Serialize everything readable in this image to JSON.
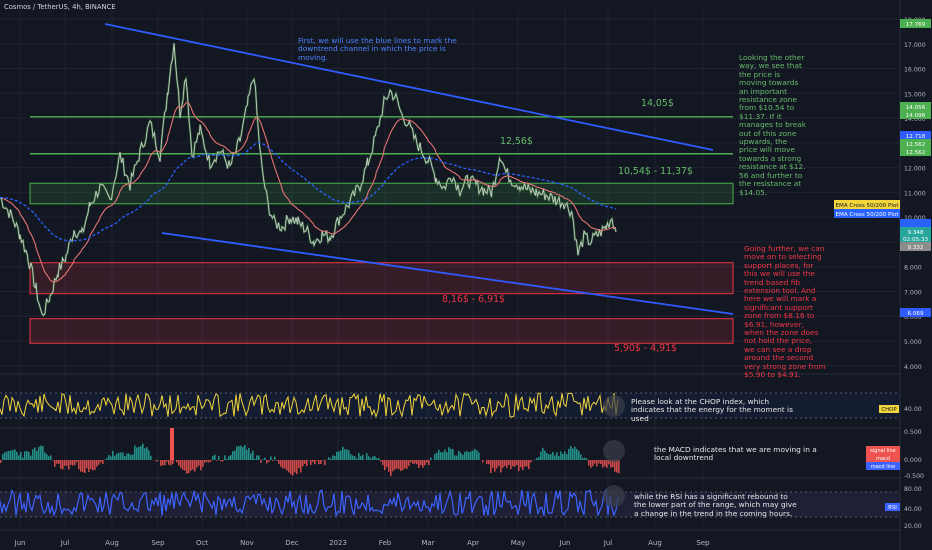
{
  "header": {
    "symbol": "Cosmos / TetherUS, 4h, BINANCE"
  },
  "colors": {
    "background": "#131722",
    "grid": "#1f2331",
    "channel": "#2f5bff",
    "resistance": "#4caf50",
    "support": "#f23645",
    "price": "#c9c9c9",
    "ema_fast": "#e57373",
    "ema_slow": "#2962ff",
    "chop": "#f2d63c",
    "rsi": "#3d63ff",
    "macd_up": "#26a69a",
    "macd_down": "#ef5350",
    "note_blue": "#4d86ff",
    "note_green": "#66bb6a",
    "note_red": "#f23645",
    "note_white": "#e8e8e8"
  },
  "notes": {
    "channel": "First, we will use the blue lines to mark the\ndowntrend channel in which the price is\nmoving.",
    "resistance": "Looking the other\nway, we see that\nthe price is\nmoving towards\nan important\nresistance zone\nfrom $10.54 to\n$11.37. If it\nmanages to break\nout of this zone\nupwards, the\nprice will move\ntowards a strong\nresistance at $12.\n56 and further to\nthe resistance at\n$14.05.",
    "support": "Going further, we can\nmove on to selecting\nsupport places, for\nthis we will use the\ntrend based fib\nextension tool. And\nhere we will mark a\nsignificant support\nzone from $8.16 to\n$6.91, however,\nwhen the zone does\nnot hold the price,\nwe can see a drop\naround the second\nvery strong zone from\n$5.90 to $4.91.",
    "chop": "Please look at the CHOP index, which\nindicates that the energy for the moment is\nused",
    "macd": "the MACD indicates that we are moving in a\nlocal downtrend",
    "rsi": "while the RSI has a significant rebound to\nthe lower part of the range, which may give\na change in the trend in the coming hours."
  },
  "chart_data": {
    "type": "line",
    "title": "Cosmos / TetherUS, 4h, BINANCE",
    "x": [
      "Jun",
      "Jul",
      "Aug",
      "Sep",
      "Oct",
      "Nov",
      "Dec",
      "2023",
      "Feb",
      "Mar",
      "Apr",
      "May",
      "Jun",
      "Jul",
      "Aug",
      "Sep"
    ],
    "price_axis": {
      "ticks": [
        "18.000",
        "17.000",
        "16.000",
        "15.000",
        "14.000",
        "13.000",
        "12.000",
        "11.000",
        "10.000",
        "9.000",
        "8.000",
        "7.000",
        "6.000",
        "5.000",
        "4.000"
      ],
      "badges": [
        {
          "text": "17.769",
          "color": "#4caf50"
        },
        {
          "text": "14.056",
          "color": "#4caf50"
        },
        {
          "text": "14.096",
          "color": "#4caf50"
        },
        {
          "text": "12.718",
          "color": "#2f5bff"
        },
        {
          "text": "12.562",
          "color": "#4caf50"
        },
        {
          "text": "12.562",
          "color": "#4caf50"
        },
        {
          "text": "EMA Cross 50/200 Plot",
          "color": "#f2d63c"
        },
        {
          "text": "EMA Cross 50/200 Plot",
          "color": "#2962ff"
        },
        {
          "text": "",
          "color": "#2962ff"
        },
        {
          "text": "9.348",
          "color": "#26a69a"
        },
        {
          "text": "02:05:33",
          "color": "#26a69a"
        },
        {
          "text": "9.332",
          "color": "#8c8c8c"
        },
        {
          "text": "6.069",
          "color": "#2f5bff"
        }
      ]
    },
    "indicator_axes": {
      "chop": {
        "ticks": [
          "40.00"
        ],
        "label": "CHOP"
      },
      "macd": {
        "ticks": [
          "0.500",
          "0.000",
          "-0.500"
        ],
        "labels": [
          "signal line",
          "macd",
          "macd line"
        ]
      },
      "rsi": {
        "ticks": [
          "80.00",
          "40.00",
          "20.00"
        ],
        "label": "RSI"
      }
    },
    "zones": [
      {
        "label": "14,05$",
        "kind": "line",
        "value": 14.05,
        "color": "#4caf50"
      },
      {
        "label": "12,56$",
        "kind": "line",
        "value": 12.56,
        "color": "#4caf50"
      },
      {
        "label": "10,54$ - 11,37$",
        "kind": "box",
        "low": 10.54,
        "high": 11.37,
        "color": "#4caf50"
      },
      {
        "label": "8,16$ - 6,91$",
        "kind": "box",
        "low": 6.91,
        "high": 8.16,
        "color": "#f23645"
      },
      {
        "label": "5,90$ - 4,91$",
        "kind": "box",
        "low": 4.91,
        "high": 5.9,
        "color": "#f23645"
      }
    ],
    "price_series": [
      [
        0,
        10.8
      ],
      [
        12,
        10.0
      ],
      [
        20,
        9.3
      ],
      [
        28,
        8.4
      ],
      [
        36,
        7.1
      ],
      [
        42,
        6.0
      ],
      [
        50,
        6.8
      ],
      [
        58,
        7.8
      ],
      [
        66,
        8.4
      ],
      [
        74,
        9.5
      ],
      [
        82,
        9.3
      ],
      [
        90,
        10.5
      ],
      [
        100,
        11.2
      ],
      [
        110,
        10.7
      ],
      [
        120,
        12.5
      ],
      [
        130,
        11.3
      ],
      [
        140,
        12.6
      ],
      [
        150,
        13.8
      ],
      [
        160,
        12.5
      ],
      [
        168,
        15.2
      ],
      [
        174,
        17.1
      ],
      [
        180,
        14.2
      ],
      [
        186,
        15.8
      ],
      [
        192,
        12.5
      ],
      [
        200,
        13.5
      ],
      [
        210,
        12.2
      ],
      [
        220,
        12.7
      ],
      [
        230,
        12.0
      ],
      [
        240,
        13.1
      ],
      [
        248,
        14.6
      ],
      [
        254,
        15.8
      ],
      [
        258,
        13.6
      ],
      [
        262,
        11.9
      ],
      [
        268,
        10.5
      ],
      [
        274,
        9.8
      ],
      [
        282,
        9.6
      ],
      [
        290,
        10.0
      ],
      [
        298,
        9.8
      ],
      [
        306,
        9.5
      ],
      [
        314,
        9.0
      ],
      [
        322,
        9.3
      ],
      [
        330,
        9.2
      ],
      [
        340,
        10.0
      ],
      [
        350,
        10.6
      ],
      [
        360,
        11.3
      ],
      [
        368,
        12.2
      ],
      [
        376,
        13.3
      ],
      [
        384,
        14.6
      ],
      [
        390,
        15.1
      ],
      [
        396,
        14.8
      ],
      [
        402,
        14.1
      ],
      [
        408,
        13.8
      ],
      [
        414,
        13.2
      ],
      [
        420,
        12.8
      ],
      [
        428,
        12.3
      ],
      [
        436,
        11.6
      ],
      [
        444,
        11.2
      ],
      [
        452,
        11.7
      ],
      [
        460,
        11.1
      ],
      [
        468,
        11.5
      ],
      [
        476,
        11.3
      ],
      [
        484,
        11.1
      ],
      [
        492,
        11.0
      ],
      [
        500,
        12.56
      ],
      [
        506,
        11.8
      ],
      [
        512,
        11.5
      ],
      [
        520,
        11.3
      ],
      [
        528,
        11.1
      ],
      [
        536,
        11.0
      ],
      [
        546,
        10.9
      ],
      [
        556,
        10.7
      ],
      [
        564,
        10.6
      ],
      [
        572,
        10.2
      ],
      [
        578,
        8.5
      ],
      [
        584,
        9.2
      ],
      [
        590,
        9.0
      ],
      [
        598,
        9.3
      ],
      [
        606,
        9.6
      ],
      [
        612,
        10.0
      ],
      [
        616,
        9.4
      ]
    ],
    "series": [
      {
        "name": "EMA Cross 50/200 Plot",
        "color": "#f2d63c"
      },
      {
        "name": "EMA Cross 50/200 Plot",
        "color": "#2962ff"
      }
    ],
    "indicators": [
      "CHOP",
      "MACD",
      "RSI"
    ],
    "grid": true
  }
}
